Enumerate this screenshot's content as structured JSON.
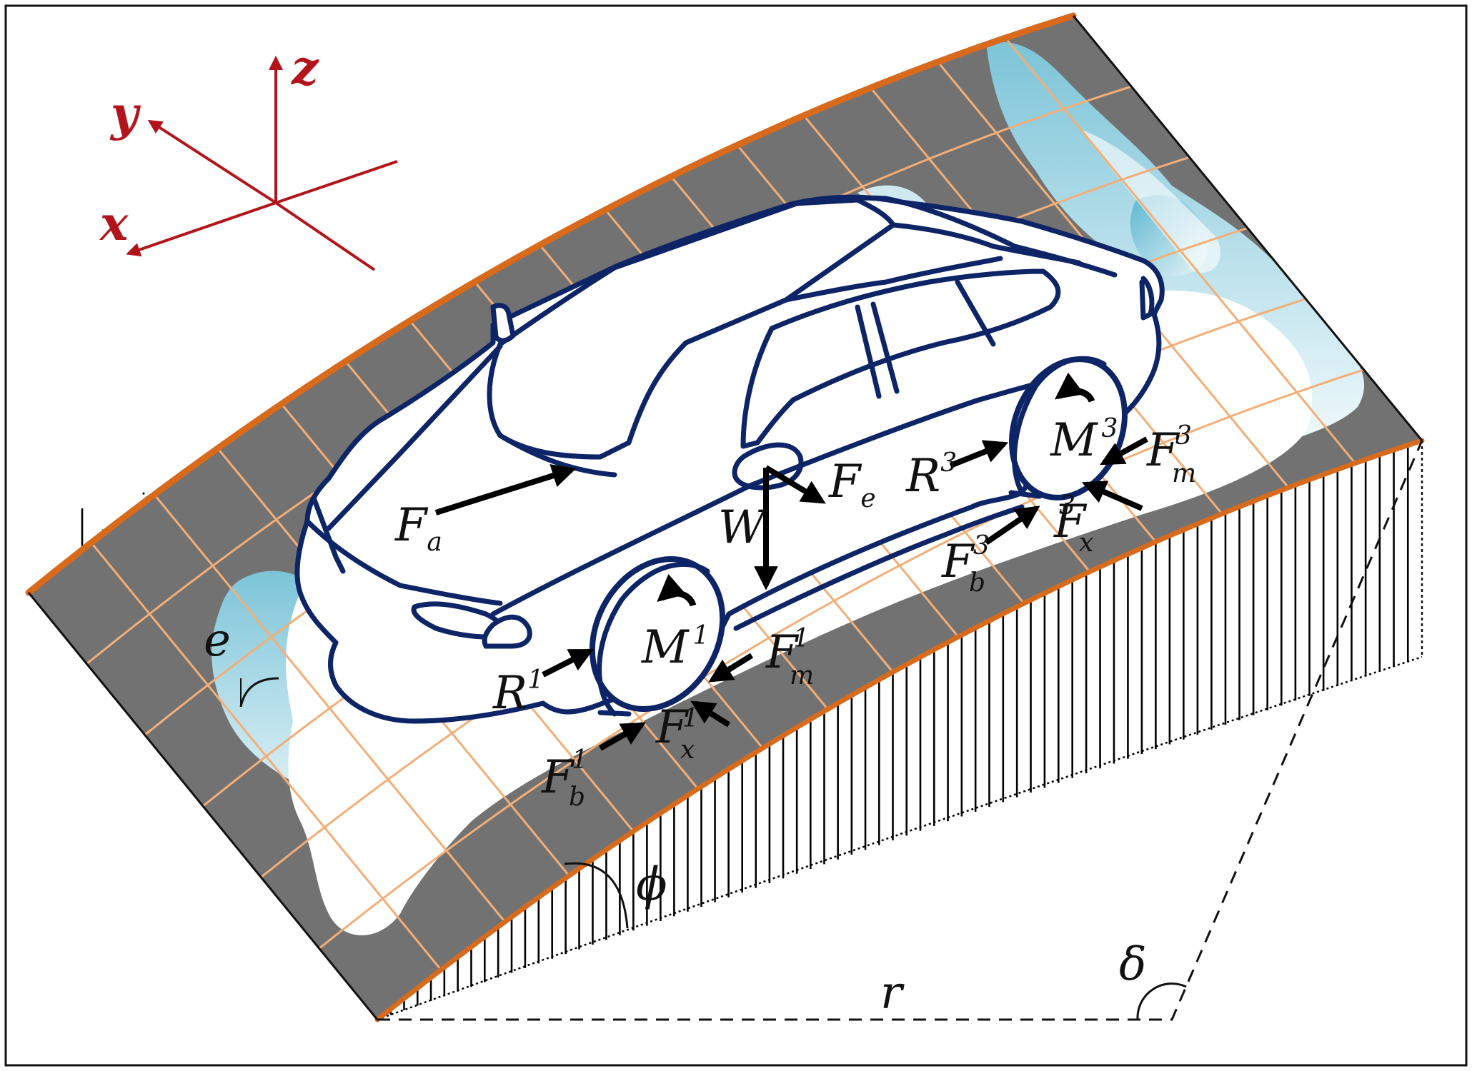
{
  "axes": {
    "x_label": "x",
    "y_label": "y",
    "z_label": "z"
  },
  "labels": {
    "Fa": {
      "main": "F",
      "sub": "a"
    },
    "Fe": {
      "main": "F",
      "sub": "e"
    },
    "W": "W",
    "M1": {
      "main": "M",
      "sup": "1"
    },
    "M3": {
      "main": "M",
      "sup": "3"
    },
    "R1": {
      "main": "R",
      "sup": "1"
    },
    "R3": {
      "main": "R",
      "sup": "3"
    },
    "Fm1": {
      "main": "F",
      "sup": "1",
      "sub": "m"
    },
    "Fm3": {
      "main": "F",
      "sup": "3",
      "sub": "m"
    },
    "Fx1": {
      "main": "F",
      "sup": "1",
      "sub": "x"
    },
    "Fx3": {
      "main": "F",
      "sup": "3",
      "sub": "x"
    },
    "Fb1": {
      "main": "F",
      "sup": "1",
      "sub": "b"
    },
    "Fb3": {
      "main": "F",
      "sup": "3",
      "sub": "b"
    },
    "e": "e",
    "phi": "ϕ",
    "r": "r",
    "delta": "δ"
  },
  "colors": {
    "axes": "#b3141c",
    "road_edge": "#d86a1c",
    "asphalt": "#727272",
    "ice": "#a9d8e6",
    "grid": "#f3ae78",
    "car": "#0d2466"
  }
}
